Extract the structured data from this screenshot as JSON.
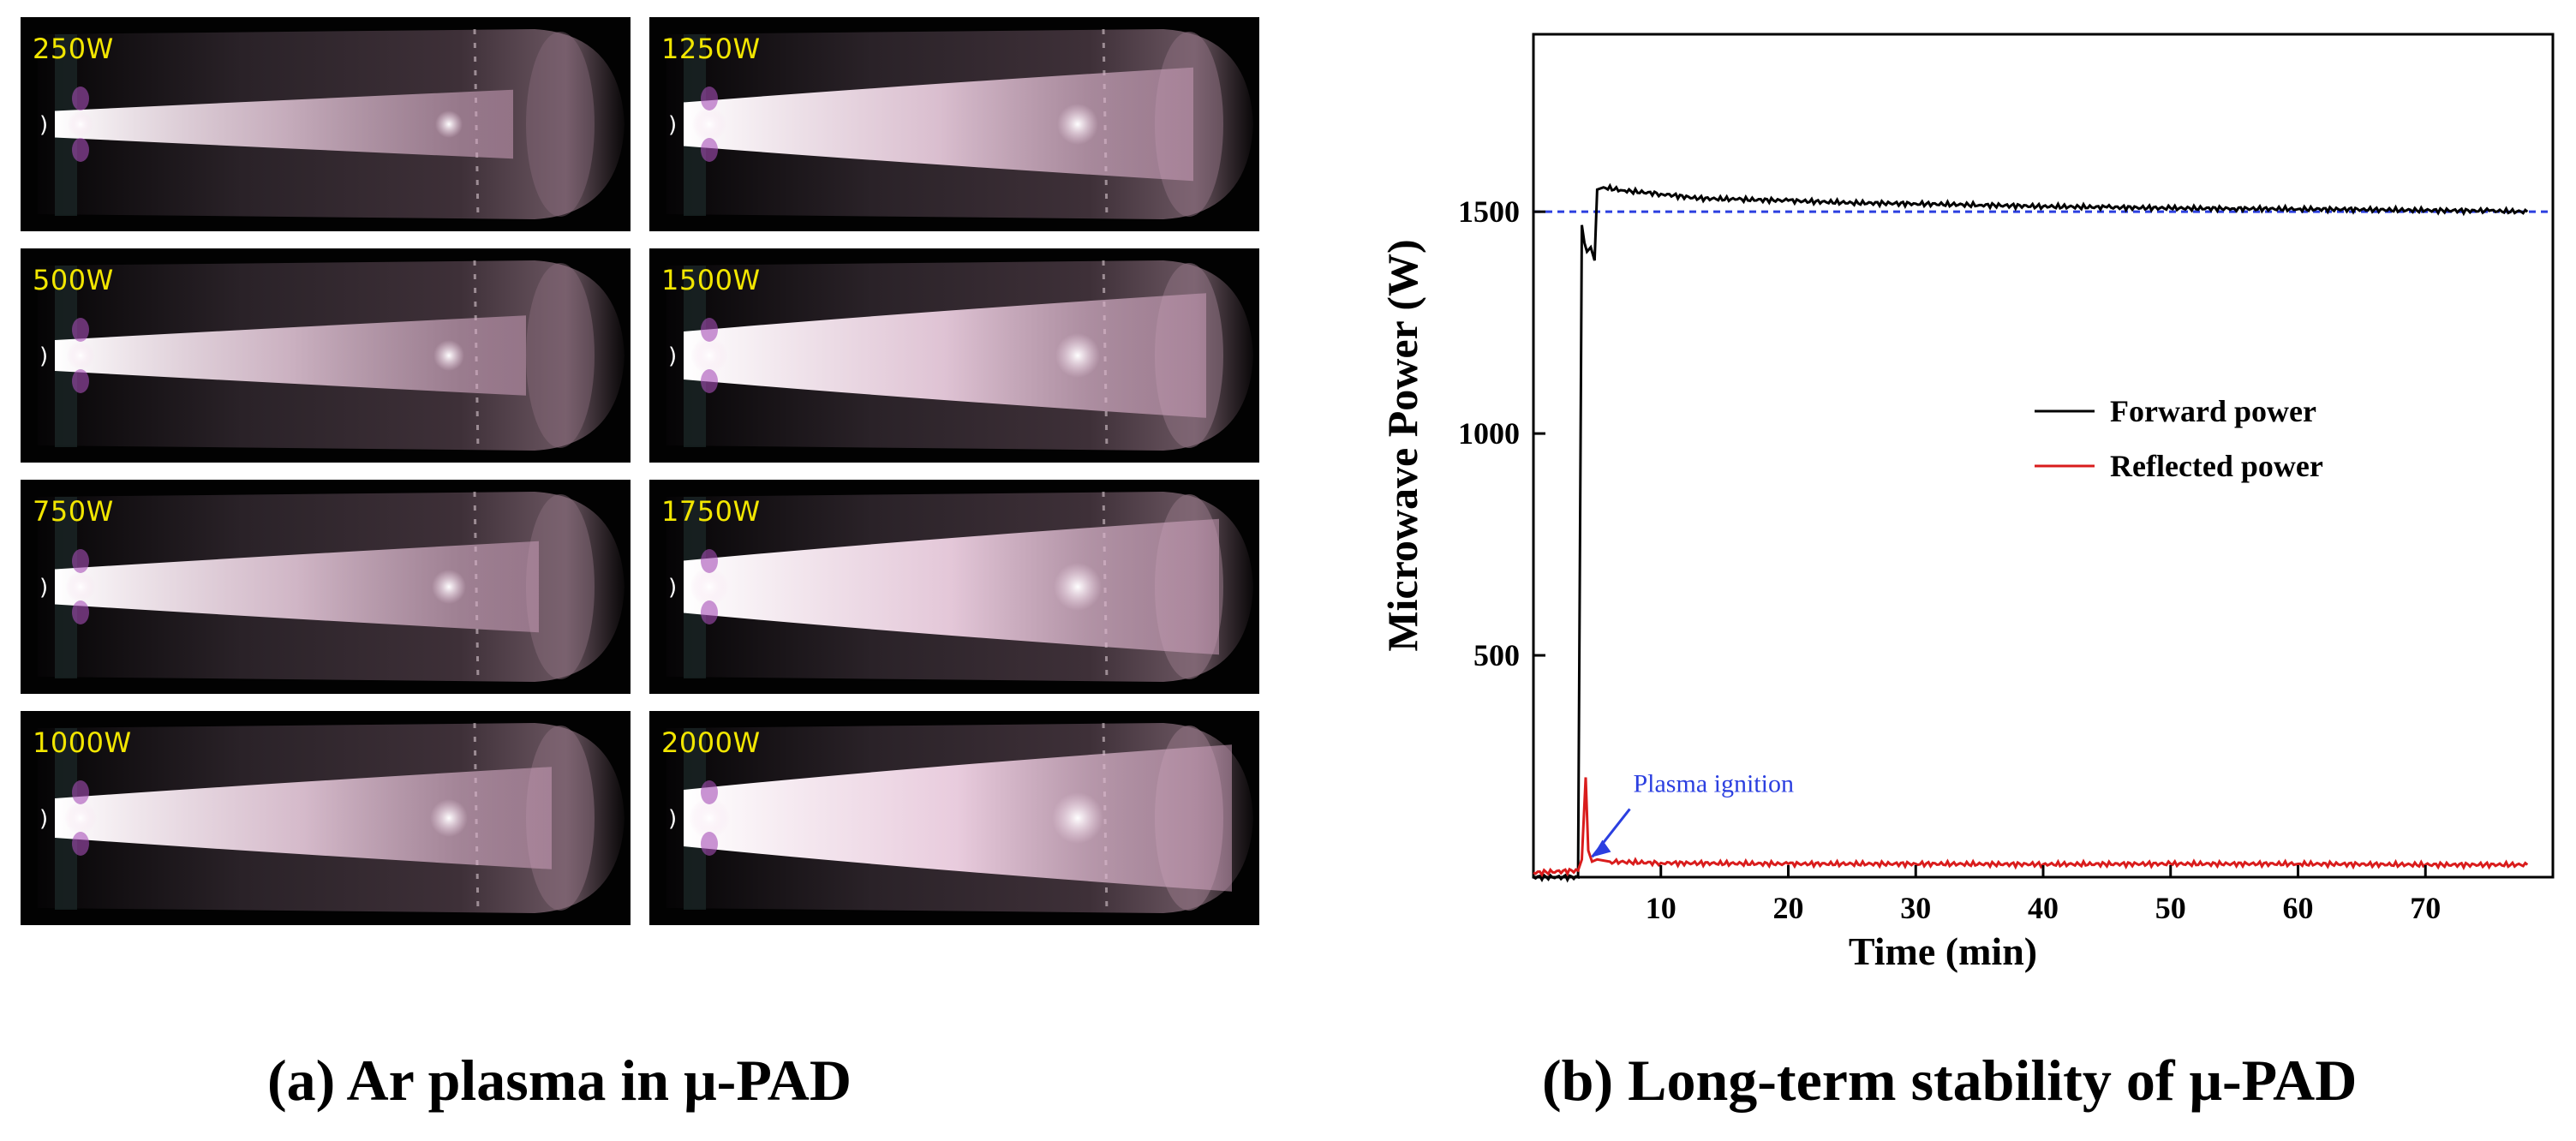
{
  "panel_a": {
    "caption": "(a) Ar plasma in μ-PAD",
    "photos": [
      {
        "label": "250W",
        "power": 250
      },
      {
        "label": "1250W",
        "power": 1250
      },
      {
        "label": "500W",
        "power": 500
      },
      {
        "label": "1500W",
        "power": 1500
      },
      {
        "label": "750W",
        "power": 750
      },
      {
        "label": "1750W",
        "power": 1750
      },
      {
        "label": "1000W",
        "power": 1000
      },
      {
        "label": "2000W",
        "power": 2000
      }
    ]
  },
  "panel_b": {
    "caption": "(b) Long-term stability of μ-PAD"
  },
  "chart_data": {
    "type": "line",
    "title": "",
    "xlabel": "Time (min)",
    "ylabel": "Microwave Power (W)",
    "xlim": [
      0,
      80
    ],
    "ylim": [
      0,
      1900
    ],
    "xticks": [
      10,
      20,
      30,
      40,
      50,
      60,
      70
    ],
    "yticks": [
      500,
      1000,
      1500
    ],
    "grid": false,
    "legend": "center-right",
    "reference_line": {
      "y": 1500,
      "style": "dashed",
      "color": "#2b3fe0"
    },
    "annotation": {
      "text": "Plasma ignition",
      "x": 4.2,
      "y": 30,
      "color": "#2b3fe0"
    },
    "series": [
      {
        "name": "Forward power",
        "color": "#000000",
        "x": [
          0,
          3.5,
          3.8,
          4.0,
          4.2,
          4.5,
          4.8,
          5.0,
          5.5,
          7,
          10,
          13,
          16,
          20,
          25,
          30,
          35,
          40,
          45,
          50,
          55,
          60,
          65,
          70,
          75,
          78
        ],
        "y": [
          0,
          0,
          1470,
          1430,
          1410,
          1420,
          1390,
          1550,
          1555,
          1548,
          1540,
          1530,
          1528,
          1525,
          1520,
          1518,
          1515,
          1512,
          1510,
          1508,
          1507,
          1506,
          1505,
          1503,
          1502,
          1500
        ]
      },
      {
        "name": "Reflected power",
        "color": "#d91c1c",
        "x": [
          0,
          3.5,
          3.8,
          4.1,
          4.3,
          4.6,
          5.0,
          6,
          10,
          20,
          30,
          40,
          50,
          60,
          70,
          78
        ],
        "y": [
          10,
          15,
          40,
          225,
          60,
          35,
          40,
          35,
          32,
          30,
          30,
          29,
          30,
          30,
          28,
          28
        ]
      }
    ]
  }
}
